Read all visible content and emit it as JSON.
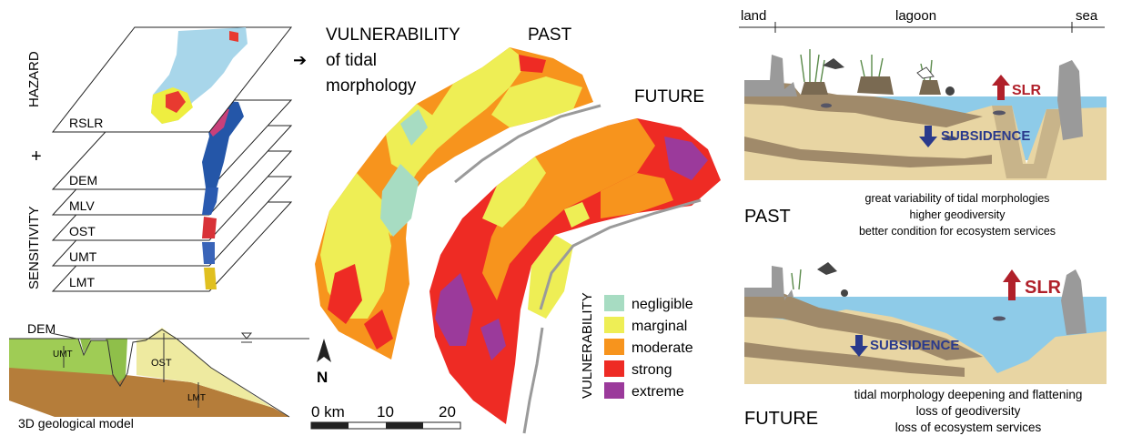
{
  "hazard": {
    "label": "HAZARD",
    "plus": "+",
    "layers": [
      "RSLR",
      "DEM",
      "MLV",
      "OST",
      "UMT",
      "LMT"
    ]
  },
  "sensitivity": {
    "label": "SENSITIVITY"
  },
  "geomodel": {
    "caption": "3D geological model",
    "dem": "DEM",
    "umt": "UMT",
    "ost": "OST",
    "lmt": "LMT"
  },
  "vulnerability": {
    "arrow": "➔",
    "title_lines": [
      "VULNERABILITY",
      "of tidal",
      "morphology"
    ],
    "past": "PAST",
    "future": "FUTURE",
    "north": "N",
    "scale": {
      "zero": "0 km",
      "mid": "10",
      "end": "20"
    },
    "legend_title": "VULNERABILITY",
    "legend": [
      {
        "label": "negligible",
        "color": "#a7dcc2"
      },
      {
        "label": "marginal",
        "color": "#eeee55"
      },
      {
        "label": "moderate",
        "color": "#f7941d"
      },
      {
        "label": "strong",
        "color": "#ee2b24"
      },
      {
        "label": "extreme",
        "color": "#9b3a9b"
      }
    ]
  },
  "profile": {
    "land": "land",
    "lagoon": "lagoon",
    "sea": "sea",
    "slr": "SLR",
    "subsidence": "SUBSIDENCE",
    "past_label": "PAST",
    "past_lines": [
      "great variability of tidal morphologies",
      "higher geodiversity",
      "better condition for ecosystem services"
    ],
    "future_label": "FUTURE",
    "future_lines": [
      "tidal morphology deepening and flattening",
      "loss of geodiversity",
      "loss of ecosystem services"
    ]
  },
  "colors": {
    "water": "#8ecbe8",
    "sand": "#e8d5a3",
    "mud": "#a08a6a",
    "dark": "#5c5448",
    "slr": "#b0202a",
    "subsidence": "#2a3a8c"
  }
}
